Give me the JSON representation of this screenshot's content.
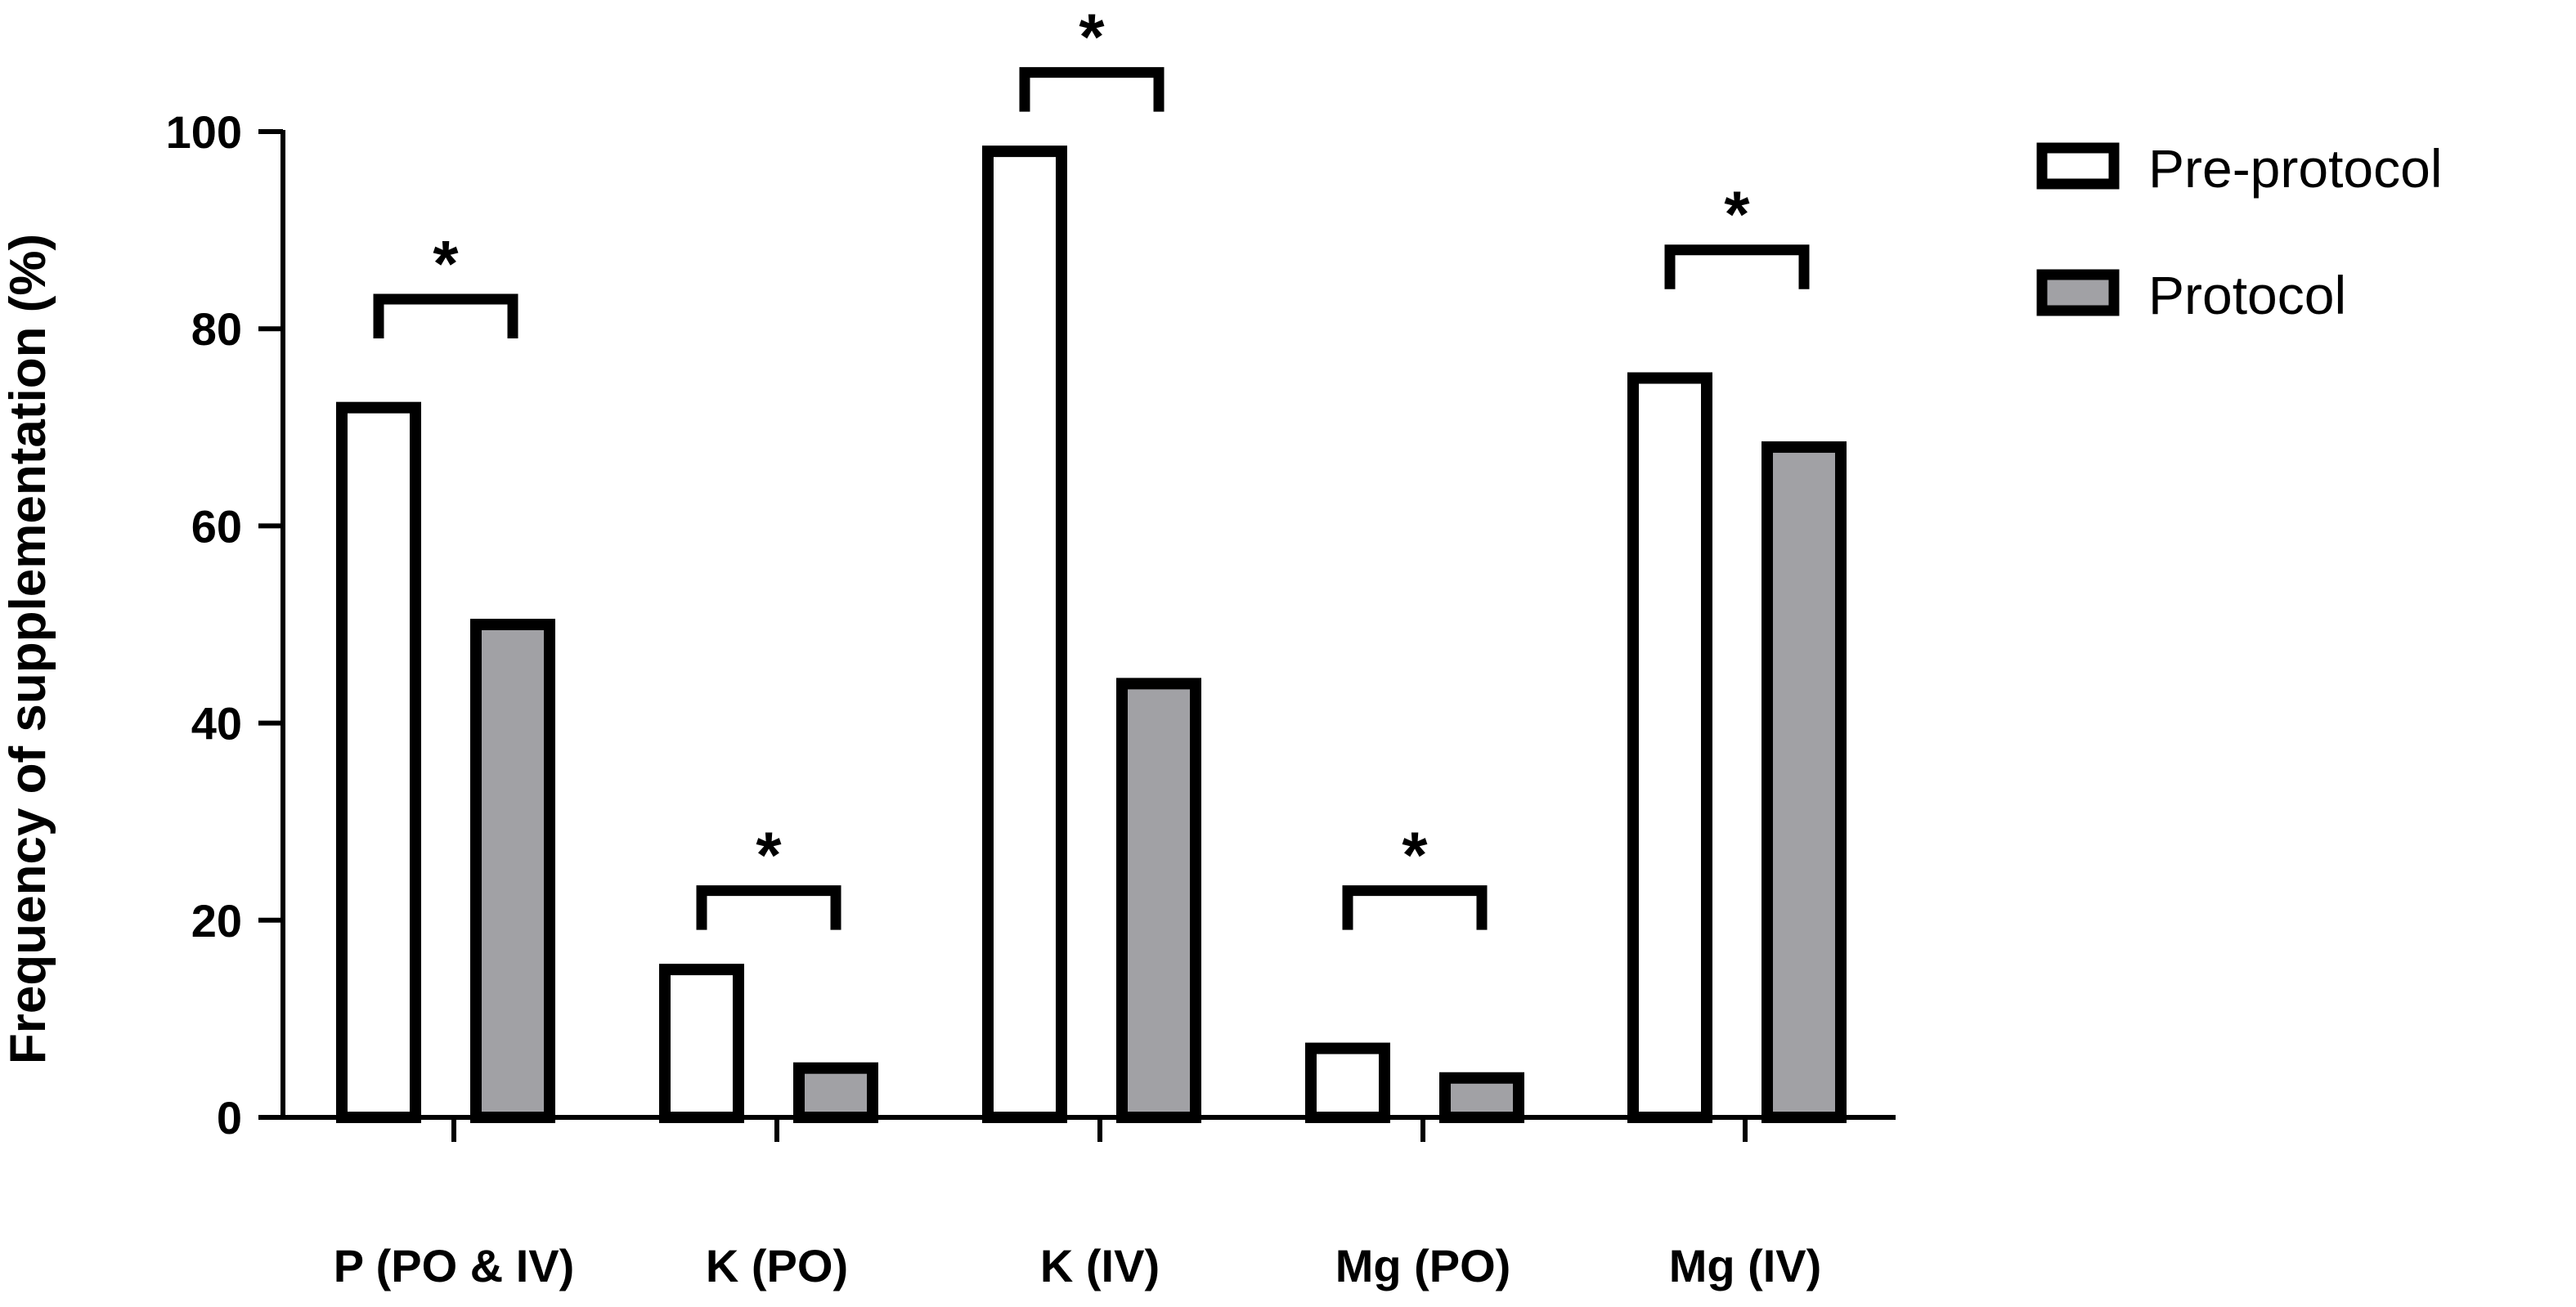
{
  "chart_data": {
    "type": "bar",
    "categories": [
      "P (PO & IV)",
      "K (PO)",
      "K (IV)",
      "Mg (PO)",
      "Mg (IV)"
    ],
    "series": [
      {
        "name": "Pre-protocol",
        "values": [
          72,
          15,
          98,
          7,
          75
        ],
        "color": "#ffffff"
      },
      {
        "name": "Protocol",
        "values": [
          50,
          5,
          44,
          4,
          68
        ],
        "color": "#a1a1a5"
      }
    ],
    "ylabel": "Frequency of supplementation (%)",
    "xlabel": "",
    "ylim": [
      0,
      100
    ],
    "yticks": [
      "0",
      "20",
      "40",
      "60",
      "80",
      "100"
    ],
    "significance": [
      "*",
      "*",
      "*",
      "*",
      "*"
    ],
    "significance_levels": [
      83,
      23,
      106,
      23,
      88
    ],
    "grid": false,
    "legend_position": "top-right"
  },
  "colors": {
    "stroke": "#000000",
    "pre_protocol_fill": "#ffffff",
    "protocol_fill": "#a1a1a5"
  }
}
